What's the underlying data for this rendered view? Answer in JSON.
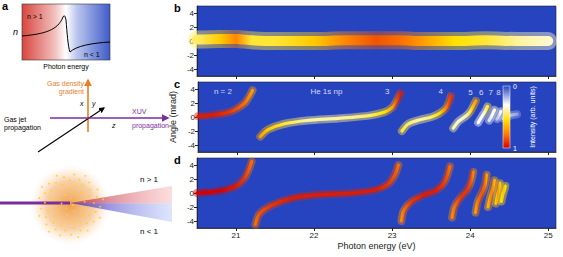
{
  "diagram": {
    "label": "a",
    "inset": {
      "y_label": "n",
      "x_label": "Photon energy",
      "upper": "n > 1",
      "lower": "n < 1"
    },
    "arrows": {
      "density": [
        "Gas density",
        "gradient"
      ],
      "jet": [
        "Gas jet",
        "propagation"
      ],
      "xuv": [
        "XUV",
        "propagation"
      ],
      "axes": [
        "x",
        "y",
        "z"
      ]
    },
    "gas_cell": {
      "upper": "n > 1",
      "lower": "n < 1"
    }
  },
  "chart_data": [
    {
      "type": "line",
      "title": "b",
      "xlim": [
        20.5,
        25.1
      ],
      "ylim": [
        -5,
        5
      ],
      "xticks": [
        21,
        22,
        23,
        24,
        25
      ],
      "yticks": [
        -4,
        -2,
        0,
        2,
        4
      ],
      "tick_labels": "y",
      "grid": false,
      "line_style": "broad",
      "series": [
        {
          "x": [
            20.5,
            20.8,
            21.0,
            21.2,
            21.5,
            22.0,
            22.4,
            22.8,
            23.1,
            23.4,
            23.8,
            24.2,
            24.6,
            25.0
          ],
          "values": [
            0.2,
            0.3,
            0.3,
            0.1,
            0.0,
            0.0,
            0.1,
            0.1,
            0.1,
            0.0,
            0.0,
            0.1,
            0.0,
            0.0
          ],
          "intensity": [
            0.45,
            0.6,
            0.75,
            0.5,
            0.5,
            0.6,
            0.75,
            0.85,
            0.8,
            0.7,
            0.55,
            0.5,
            0.4,
            0.35
          ]
        }
      ]
    },
    {
      "type": "line",
      "title": "c",
      "ylabel": "Angle (mrad)",
      "xlim": [
        20.5,
        25.1
      ],
      "ylim": [
        -5,
        5
      ],
      "xticks": [
        21,
        22,
        23,
        24,
        25
      ],
      "yticks": [
        -4,
        -2,
        0,
        2,
        4
      ],
      "tick_labels": "y",
      "grid": false,
      "line_style": "narrow",
      "annotations": [
        {
          "text": "n = 2",
          "x": 20.82,
          "y": 3.6
        },
        {
          "text": "He 1s np",
          "x": 22.15,
          "y": 3.6
        },
        {
          "text": "3",
          "x": 22.93,
          "y": 3.6
        },
        {
          "text": "4",
          "x": 23.62,
          "y": 3.6
        },
        {
          "text": "5",
          "x": 24.0,
          "y": 3.5
        },
        {
          "text": "6",
          "x": 24.14,
          "y": 3.5
        },
        {
          "text": "7",
          "x": 24.26,
          "y": 3.5
        },
        {
          "text": "8",
          "x": 24.36,
          "y": 3.5
        }
      ],
      "colorbar": {
        "label": "Intensity (arb. units)",
        "range": [
          0,
          1
        ],
        "ticks": [
          0,
          1
        ]
      },
      "series": [
        {
          "x": [
            20.5,
            20.7,
            20.9,
            21.0,
            21.1,
            21.15,
            21.2
          ],
          "values": [
            0.1,
            0.3,
            0.7,
            1.2,
            2.0,
            2.8,
            3.8
          ],
          "intensity": [
            0.95,
            0.95,
            0.9,
            0.85,
            0.8,
            0.75,
            0.7
          ]
        },
        {
          "x": [
            21.3,
            21.4,
            21.6,
            21.9,
            22.3,
            22.7,
            22.9,
            23.0,
            23.05,
            23.1
          ],
          "values": [
            -2.8,
            -1.8,
            -1.0,
            -0.5,
            -0.2,
            0.2,
            0.7,
            1.4,
            2.3,
            3.4
          ],
          "intensity": [
            0.7,
            0.6,
            0.5,
            0.4,
            0.4,
            0.45,
            0.55,
            0.7,
            0.85,
            0.95
          ]
        },
        {
          "x": [
            23.12,
            23.2,
            23.35,
            23.5,
            23.6,
            23.68,
            23.72,
            23.75
          ],
          "values": [
            -2.0,
            -1.0,
            -0.4,
            0.0,
            0.5,
            1.2,
            2.0,
            3.0
          ],
          "intensity": [
            0.5,
            0.45,
            0.4,
            0.45,
            0.55,
            0.75,
            0.85,
            0.9
          ]
        },
        {
          "x": [
            23.78,
            23.85,
            23.95,
            24.0,
            24.04,
            24.07
          ],
          "values": [
            -1.6,
            -0.6,
            0.2,
            0.8,
            1.6,
            2.3
          ],
          "intensity": [
            0.4,
            0.35,
            0.4,
            0.5,
            0.65,
            0.7
          ]
        },
        {
          "x": [
            24.1,
            24.15,
            24.19,
            24.22
          ],
          "values": [
            -0.8,
            0.1,
            0.8,
            1.5
          ],
          "intensity": [
            0.3,
            0.3,
            0.4,
            0.5
          ]
        },
        {
          "x": [
            24.24,
            24.28,
            24.31
          ],
          "values": [
            -0.5,
            0.3,
            1.0
          ],
          "intensity": [
            0.25,
            0.3,
            0.35
          ]
        },
        {
          "x": [
            24.34,
            24.37,
            24.39
          ],
          "values": [
            -0.3,
            0.3,
            0.8
          ],
          "intensity": [
            0.2,
            0.25,
            0.3
          ]
        },
        {
          "x": [
            24.42,
            24.5,
            24.6
          ],
          "values": [
            -0.2,
            0.2,
            0.4
          ],
          "intensity": [
            0.2,
            0.2,
            0.15
          ]
        }
      ]
    },
    {
      "type": "line",
      "title": "d",
      "xlabel": "Photon energy (eV)",
      "xlim": [
        20.5,
        25.1
      ],
      "ylim": [
        -5,
        5
      ],
      "xticks": [
        21,
        22,
        23,
        24,
        25
      ],
      "yticks": [
        -4,
        -2,
        0,
        2,
        4
      ],
      "tick_labels": true,
      "grid": false,
      "line_style": "narrow",
      "series": [
        {
          "x": [
            20.5,
            20.8,
            21.0,
            21.1,
            21.15,
            21.2
          ],
          "values": [
            0.0,
            0.3,
            1.0,
            2.0,
            3.0,
            4.5
          ],
          "intensity": [
            1,
            1,
            0.95,
            0.9,
            0.85,
            0.8
          ]
        },
        {
          "x": [
            21.25,
            21.3,
            21.45,
            21.7,
            22.0,
            22.5,
            22.8,
            22.95,
            23.03,
            23.08
          ],
          "values": [
            -4.5,
            -3.0,
            -1.8,
            -0.8,
            -0.3,
            0.0,
            0.5,
            1.3,
            2.5,
            4.0
          ],
          "intensity": [
            0.8,
            0.85,
            0.9,
            0.95,
            0.95,
            0.95,
            0.95,
            0.9,
            0.85,
            0.8
          ]
        },
        {
          "x": [
            23.12,
            23.15,
            23.25,
            23.4,
            23.55,
            23.65,
            23.7,
            23.74
          ],
          "values": [
            -4.0,
            -2.5,
            -1.2,
            -0.3,
            0.3,
            1.2,
            2.3,
            3.8
          ],
          "intensity": [
            0.75,
            0.8,
            0.9,
            0.95,
            0.95,
            0.9,
            0.85,
            0.8
          ]
        },
        {
          "x": [
            23.77,
            23.8,
            23.88,
            23.96,
            24.01,
            24.04
          ],
          "values": [
            -3.5,
            -2.0,
            -0.6,
            0.4,
            1.6,
            3.0
          ],
          "intensity": [
            0.75,
            0.8,
            0.9,
            0.9,
            0.85,
            0.75
          ]
        },
        {
          "x": [
            24.07,
            24.1,
            24.15,
            24.19,
            24.21
          ],
          "values": [
            -2.8,
            -1.2,
            0.0,
            1.2,
            2.6
          ],
          "intensity": [
            0.7,
            0.8,
            0.85,
            0.8,
            0.7
          ]
        },
        {
          "x": [
            24.23,
            24.26,
            24.29,
            24.31
          ],
          "values": [
            -2.0,
            -0.5,
            0.6,
            1.8
          ],
          "intensity": [
            0.65,
            0.75,
            0.75,
            0.65
          ]
        },
        {
          "x": [
            24.33,
            24.35,
            24.37,
            24.38
          ],
          "values": [
            -1.5,
            -0.3,
            0.6,
            1.4
          ],
          "intensity": [
            0.6,
            0.7,
            0.7,
            0.6
          ]
        },
        {
          "x": [
            24.4,
            24.42,
            24.44,
            24.45
          ],
          "values": [
            -1.2,
            -0.2,
            0.5,
            1.0
          ],
          "intensity": [
            0.55,
            0.6,
            0.6,
            0.55
          ]
        }
      ]
    }
  ]
}
